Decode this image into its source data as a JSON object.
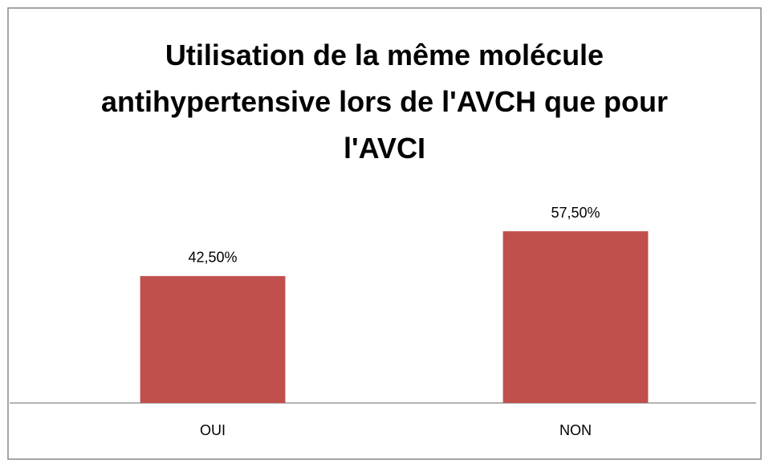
{
  "chart_data": {
    "type": "bar",
    "title": "Utilisation de la même molécule antihypertensive lors de l'AVCH que pour l'AVCI",
    "categories": [
      "OUI",
      "NON"
    ],
    "values": [
      42.5,
      57.5
    ],
    "value_labels": [
      "42,50%",
      "57,50%"
    ],
    "color": "#c0504d"
  }
}
